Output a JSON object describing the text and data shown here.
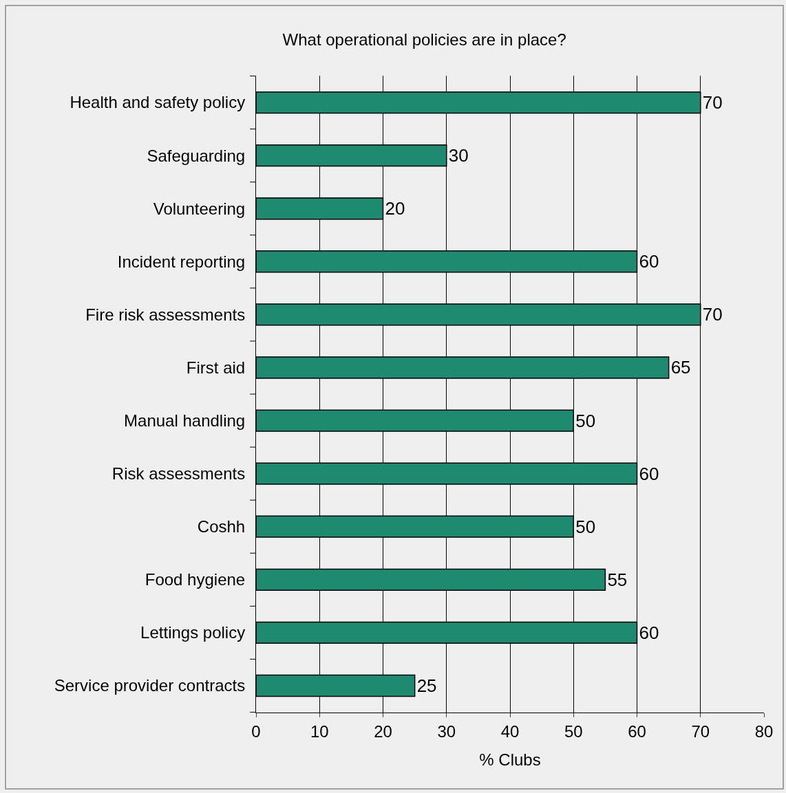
{
  "chart_data": {
    "type": "bar",
    "orientation": "horizontal",
    "title": "What operational policies are in place?",
    "xlabel": "% Clubs",
    "categories": [
      "Health and safety policy",
      "Safeguarding",
      "Volunteering",
      "Incident reporting",
      "Fire risk assessments",
      "First aid",
      "Manual handling",
      "Risk assessments",
      "Coshh",
      "Food hygiene",
      "Lettings policy",
      "Service provider contracts"
    ],
    "values": [
      70,
      30,
      20,
      60,
      70,
      65,
      50,
      60,
      50,
      55,
      60,
      25
    ],
    "color": "#1e8a70",
    "xlim": [
      0,
      80
    ],
    "xticks": [
      0,
      10,
      20,
      30,
      40,
      50,
      60,
      70,
      80
    ],
    "grid": "x",
    "data_labels": true,
    "legend": false
  }
}
